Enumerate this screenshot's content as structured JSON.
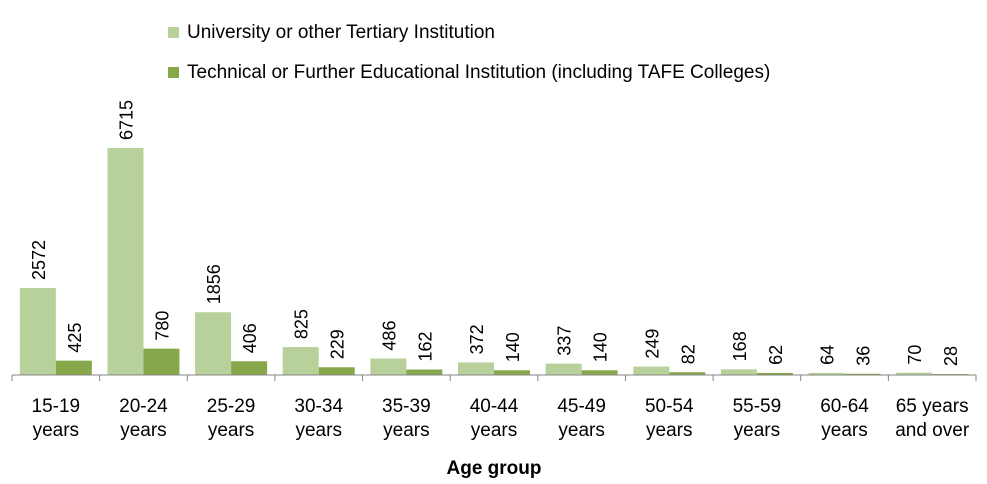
{
  "chart_data": {
    "type": "bar",
    "title": "",
    "xlabel": "Age group",
    "ylabel": "",
    "ylim": [
      0,
      6715
    ],
    "grid": false,
    "legend": "top",
    "categories": [
      [
        "15-19",
        "years"
      ],
      [
        "20-24",
        "years"
      ],
      [
        "25-29",
        "years"
      ],
      [
        "30-34",
        "years"
      ],
      [
        "35-39",
        "years"
      ],
      [
        "40-44",
        "years"
      ],
      [
        "45-49",
        "years"
      ],
      [
        "50-54",
        "years"
      ],
      [
        "55-59",
        "years"
      ],
      [
        "60-64",
        "years"
      ],
      [
        "65 years",
        "and over"
      ]
    ],
    "series": [
      {
        "name": "University or other Tertiary Institution",
        "color": "#b8d09a",
        "values": [
          2572,
          6715,
          1856,
          825,
          486,
          372,
          337,
          249,
          168,
          64,
          70
        ]
      },
      {
        "name": "Technical or Further Educational Institution (including TAFE Colleges)",
        "color": "#86a84a",
        "values": [
          425,
          780,
          406,
          229,
          162,
          140,
          140,
          82,
          62,
          36,
          28
        ]
      }
    ]
  }
}
